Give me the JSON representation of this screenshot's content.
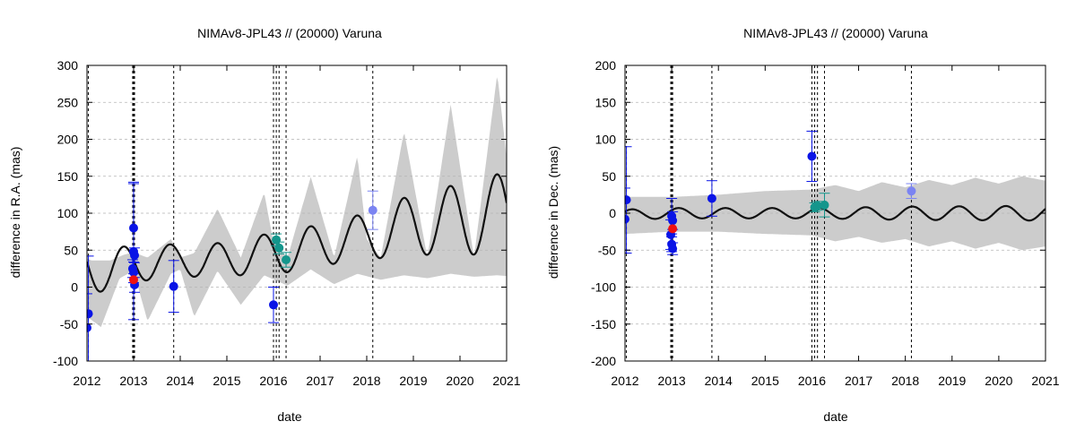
{
  "colors": {
    "envelope": "#cccccc",
    "model_line": "#111111",
    "grid": "#b4b4b4",
    "frame": "#000000",
    "obs_blue": "#0a14e6",
    "obs_red": "#ee1111",
    "obs_teal": "#14968c",
    "obs_lightblue": "#7b84f2"
  },
  "chart_data": [
    {
      "type": "scatter",
      "title": "NIMAv8-JPL43 // (20000) Varuna",
      "xlabel": "date",
      "ylabel": "difference in R.A. (mas)",
      "xlim": [
        2012,
        2021
      ],
      "ylim": [
        -100,
        300
      ],
      "xticks": [
        "2012",
        "2013",
        "2014",
        "2015",
        "2016",
        "2017",
        "2018",
        "2019",
        "2020",
        "2021"
      ],
      "yticks": [
        "-100",
        "-50",
        "0",
        "50",
        "100",
        "150",
        "200",
        "250",
        "300"
      ],
      "grid": "horizontal dashed at each y tick",
      "observation_epochs": [
        2012.0,
        2012.03,
        2012.98,
        2013.0,
        2013.02,
        2013.86,
        2016.0,
        2016.06,
        2016.12,
        2016.27,
        2018.13
      ],
      "model": {
        "name": "",
        "mean": [
          [
            2012.0,
            26
          ],
          [
            2012.5,
            24
          ],
          [
            2013.0,
            30
          ],
          [
            2013.5,
            36
          ],
          [
            2014.0,
            37
          ],
          [
            2014.5,
            34
          ],
          [
            2015.0,
            38
          ],
          [
            2015.5,
            43
          ],
          [
            2016.0,
            46
          ],
          [
            2016.5,
            49
          ],
          [
            2017.0,
            57
          ],
          [
            2017.5,
            64
          ],
          [
            2018.0,
            68
          ],
          [
            2018.5,
            77
          ],
          [
            2019.0,
            85
          ],
          [
            2019.5,
            88
          ],
          [
            2020.0,
            92
          ],
          [
            2020.5,
            96
          ],
          [
            2021.0,
            100
          ]
        ],
        "amplitude": [
          [
            2012.0,
            33
          ],
          [
            2013.0,
            26
          ],
          [
            2014.0,
            20
          ],
          [
            2015.0,
            24
          ],
          [
            2016.0,
            27
          ],
          [
            2017.0,
            29
          ],
          [
            2018.0,
            31
          ],
          [
            2019.0,
            41
          ],
          [
            2020.0,
            48
          ],
          [
            2021.0,
            56
          ]
        ],
        "phase_ref": 2012.79,
        "envelope_upper": [
          [
            2012.0,
            38
          ],
          [
            2012.1,
            36
          ],
          [
            2012.5,
            36
          ],
          [
            2012.8,
            44
          ],
          [
            2013.0,
            47
          ],
          [
            2013.3,
            40
          ],
          [
            2013.8,
            65
          ],
          [
            2014.0,
            40
          ],
          [
            2014.3,
            46
          ],
          [
            2014.8,
            106
          ],
          [
            2015.3,
            40
          ],
          [
            2015.8,
            128
          ],
          [
            2016.0,
            60
          ],
          [
            2016.3,
            40
          ],
          [
            2016.8,
            149
          ],
          [
            2017.3,
            40
          ],
          [
            2017.8,
            178
          ],
          [
            2018.0,
            65
          ],
          [
            2018.3,
            40
          ],
          [
            2018.8,
            211
          ],
          [
            2019.3,
            40
          ],
          [
            2019.8,
            247
          ],
          [
            2020.3,
            40
          ],
          [
            2020.8,
            289
          ],
          [
            2021.0,
            175
          ]
        ],
        "envelope_lower": [
          [
            2012.0,
            -40
          ],
          [
            2012.3,
            -54
          ],
          [
            2012.7,
            12
          ],
          [
            2013.0,
            22
          ],
          [
            2013.3,
            -46
          ],
          [
            2013.8,
            18
          ],
          [
            2014.0,
            24
          ],
          [
            2014.3,
            -40
          ],
          [
            2014.8,
            22
          ],
          [
            2015.3,
            -24
          ],
          [
            2015.8,
            16
          ],
          [
            2016.3,
            2
          ],
          [
            2016.8,
            24
          ],
          [
            2017.3,
            4
          ],
          [
            2017.8,
            18
          ],
          [
            2018.3,
            10
          ],
          [
            2018.8,
            16
          ],
          [
            2019.3,
            12
          ],
          [
            2019.8,
            18
          ],
          [
            2020.3,
            14
          ],
          [
            2020.8,
            16
          ],
          [
            2021.0,
            15
          ]
        ]
      },
      "series": [
        {
          "name": "",
          "color": "obs_blue",
          "points": [
            {
              "x": 2012.03,
              "y": -36,
              "err": 78
            },
            {
              "x": 2012.0,
              "y": -55,
              "err": 46
            },
            {
              "x": 2013.0,
              "y": 80,
              "err": 62
            },
            {
              "x": 2013.0,
              "y": 48,
              "err": 92
            },
            {
              "x": 2013.02,
              "y": 43,
              "err": 10
            },
            {
              "x": 2012.98,
              "y": 25,
              "err": 12
            },
            {
              "x": 2013.0,
              "y": 20,
              "err": 14
            },
            {
              "x": 2013.02,
              "y": 3,
              "err": 10
            },
            {
              "x": 2013.86,
              "y": 1,
              "err": 35
            },
            {
              "x": 2016.0,
              "y": -24,
              "err": 24
            }
          ]
        },
        {
          "name": "",
          "color": "obs_red",
          "points": [
            {
              "x": 2013.0,
              "y": 10,
              "err": 0
            }
          ]
        },
        {
          "name": "",
          "color": "obs_teal",
          "points": [
            {
              "x": 2016.06,
              "y": 64,
              "err": 8
            },
            {
              "x": 2016.12,
              "y": 53,
              "err": 8
            },
            {
              "x": 2016.27,
              "y": 37,
              "err": 10
            }
          ]
        },
        {
          "name": "",
          "color": "obs_lightblue",
          "points": [
            {
              "x": 2018.13,
              "y": 104,
              "err": 26
            }
          ]
        }
      ]
    },
    {
      "type": "scatter",
      "title": "NIMAv8-JPL43 // (20000) Varuna",
      "xlabel": "date",
      "ylabel": "difference in Dec. (mas)",
      "xlim": [
        2012,
        2021
      ],
      "ylim": [
        -200,
        200
      ],
      "xticks": [
        "2012",
        "2013",
        "2014",
        "2015",
        "2016",
        "2017",
        "2018",
        "2019",
        "2020",
        "2021"
      ],
      "yticks": [
        "-200",
        "-150",
        "-100",
        "-50",
        "0",
        "50",
        "100",
        "150",
        "200"
      ],
      "grid": "horizontal dashed at each y tick",
      "observation_epochs": [
        2012.0,
        2012.03,
        2012.98,
        2013.0,
        2013.02,
        2013.86,
        2016.0,
        2016.06,
        2016.12,
        2016.27,
        2018.13
      ],
      "model": {
        "name": "",
        "mean": [
          [
            2012.0,
            -2
          ],
          [
            2013.0,
            0
          ],
          [
            2014.0,
            0
          ],
          [
            2015.0,
            0
          ],
          [
            2016.0,
            0
          ],
          [
            2017.0,
            0
          ],
          [
            2018.0,
            0
          ],
          [
            2019.0,
            0
          ],
          [
            2020.0,
            0
          ],
          [
            2021.0,
            0
          ]
        ],
        "amplitude": [
          [
            2012.0,
            7
          ],
          [
            2016.0,
            7
          ],
          [
            2018.0,
            9
          ],
          [
            2021.0,
            10
          ]
        ],
        "phase_ref": 2013.15,
        "envelope_upper": [
          [
            2012.0,
            22
          ],
          [
            2013.0,
            22
          ],
          [
            2014.0,
            25
          ],
          [
            2015.0,
            30
          ],
          [
            2016.0,
            32
          ],
          [
            2016.5,
            38
          ],
          [
            2017.0,
            30
          ],
          [
            2017.5,
            42
          ],
          [
            2018.0,
            35
          ],
          [
            2018.5,
            45
          ],
          [
            2019.0,
            38
          ],
          [
            2019.5,
            48
          ],
          [
            2020.0,
            40
          ],
          [
            2020.5,
            50
          ],
          [
            2021.0,
            44
          ]
        ],
        "envelope_lower": [
          [
            2012.0,
            -28
          ],
          [
            2013.0,
            -25
          ],
          [
            2014.0,
            -25
          ],
          [
            2015.0,
            -28
          ],
          [
            2016.0,
            -30
          ],
          [
            2016.5,
            -38
          ],
          [
            2017.0,
            -32
          ],
          [
            2017.5,
            -40
          ],
          [
            2018.0,
            -35
          ],
          [
            2018.5,
            -45
          ],
          [
            2019.0,
            -38
          ],
          [
            2019.5,
            -48
          ],
          [
            2020.0,
            -40
          ],
          [
            2020.5,
            -50
          ],
          [
            2021.0,
            -45
          ]
        ]
      },
      "series": [
        {
          "name": "",
          "color": "obs_blue",
          "points": [
            {
              "x": 2012.03,
              "y": 18,
              "err": 72
            },
            {
              "x": 2012.0,
              "y": -8,
              "err": 42
            },
            {
              "x": 2013.0,
              "y": -4,
              "err": 24
            },
            {
              "x": 2013.02,
              "y": -10,
              "err": 12
            },
            {
              "x": 2012.98,
              "y": -29,
              "err": 20
            },
            {
              "x": 2013.0,
              "y": -42,
              "err": 10
            },
            {
              "x": 2013.02,
              "y": -48,
              "err": 8
            },
            {
              "x": 2013.86,
              "y": 20,
              "err": 24
            },
            {
              "x": 2016.0,
              "y": 77,
              "err": 34
            }
          ]
        },
        {
          "name": "",
          "color": "obs_red",
          "points": [
            {
              "x": 2013.02,
              "y": -21,
              "err": 0
            }
          ]
        },
        {
          "name": "",
          "color": "obs_teal",
          "points": [
            {
              "x": 2016.06,
              "y": 8,
              "err": 6
            },
            {
              "x": 2016.12,
              "y": 10,
              "err": 6
            },
            {
              "x": 2016.27,
              "y": 11,
              "err": 16
            }
          ]
        },
        {
          "name": "",
          "color": "obs_lightblue",
          "points": [
            {
              "x": 2018.13,
              "y": 30,
              "err": 10
            }
          ]
        }
      ]
    }
  ]
}
